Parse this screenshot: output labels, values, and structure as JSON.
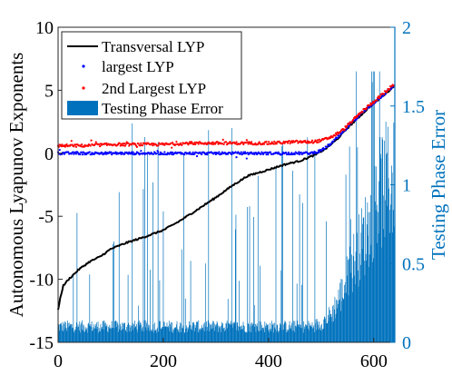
{
  "chart_data": {
    "type": "line",
    "title": "",
    "xlabel": "",
    "ylabel_left": "Autonomous Lyapunov Exponents",
    "ylabel_right": "Testing Phase Error",
    "xlim": [
      0,
      640
    ],
    "ylim_left": [
      -15,
      10
    ],
    "ylim_right": [
      0,
      2
    ],
    "xticks": [
      "0",
      "200",
      "400",
      "600"
    ],
    "xtick_values": [
      0,
      200,
      400,
      600
    ],
    "yticks_left": [
      "-15",
      "-10",
      "-5",
      "0",
      "5",
      "10"
    ],
    "ytick_left_values": [
      -15,
      -10,
      -5,
      0,
      5,
      10
    ],
    "yticks_right": [
      "0",
      "0.5",
      "1",
      "1.5",
      "2"
    ],
    "ytick_right_values": [
      0,
      0.5,
      1,
      1.5,
      2
    ],
    "grid": false,
    "legend_position": "top-left",
    "colors": {
      "transversal": "#000000",
      "largest": "#0000ff",
      "second": "#ff0000",
      "error": "#0072bd",
      "right_axis": "#0072bd"
    },
    "series": [
      {
        "name": "Transversal LYP",
        "kind": "line",
        "axis": "left",
        "x": [
          0,
          5,
          10,
          20,
          40,
          60,
          80,
          100,
          130,
          160,
          200,
          230,
          260,
          300,
          330,
          360,
          400,
          430,
          460,
          490,
          510,
          530,
          550,
          570,
          590,
          610,
          630,
          640
        ],
        "y": [
          -12.4,
          -11.3,
          -10.5,
          -10.0,
          -9.2,
          -8.6,
          -8.2,
          -7.6,
          -7.1,
          -6.7,
          -6.1,
          -5.4,
          -4.6,
          -3.5,
          -2.6,
          -1.8,
          -1.3,
          -0.9,
          -0.6,
          -0.1,
          0.4,
          1.1,
          2.0,
          2.8,
          3.6,
          4.3,
          5.0,
          5.4
        ]
      },
      {
        "name": "largest LYP",
        "kind": "dots",
        "axis": "left",
        "x": [
          0,
          50,
          100,
          150,
          200,
          250,
          300,
          350,
          400,
          450,
          480,
          500,
          520,
          540,
          560,
          580,
          600,
          620,
          640
        ],
        "y": [
          0.0,
          0.0,
          0.0,
          0.0,
          0.0,
          0.0,
          0.0,
          0.0,
          0.0,
          0.0,
          0.0,
          0.2,
          0.8,
          1.6,
          2.5,
          3.3,
          4.0,
          4.7,
          5.4
        ]
      },
      {
        "name": "2nd Largest LYP",
        "kind": "dots",
        "axis": "left",
        "x": [
          0,
          50,
          100,
          150,
          200,
          250,
          300,
          350,
          400,
          450,
          480,
          500,
          520,
          540,
          560,
          580,
          600,
          620,
          640
        ],
        "y": [
          0.6,
          0.6,
          0.7,
          0.7,
          0.7,
          0.8,
          0.8,
          0.8,
          0.8,
          0.9,
          0.9,
          1.0,
          1.3,
          1.8,
          2.6,
          3.4,
          4.1,
          4.8,
          5.5
        ]
      },
      {
        "name": "Testing Phase Error",
        "kind": "bars",
        "axis": "right",
        "x": [
          0,
          100,
          200,
          300,
          400,
          450,
          480,
          500,
          520,
          540,
          560,
          580,
          600,
          620,
          640
        ],
        "y": [
          0.1,
          0.1,
          0.1,
          0.1,
          0.1,
          0.1,
          0.1,
          0.12,
          0.18,
          0.32,
          0.5,
          0.65,
          0.85,
          1.0,
          1.02
        ]
      }
    ]
  }
}
